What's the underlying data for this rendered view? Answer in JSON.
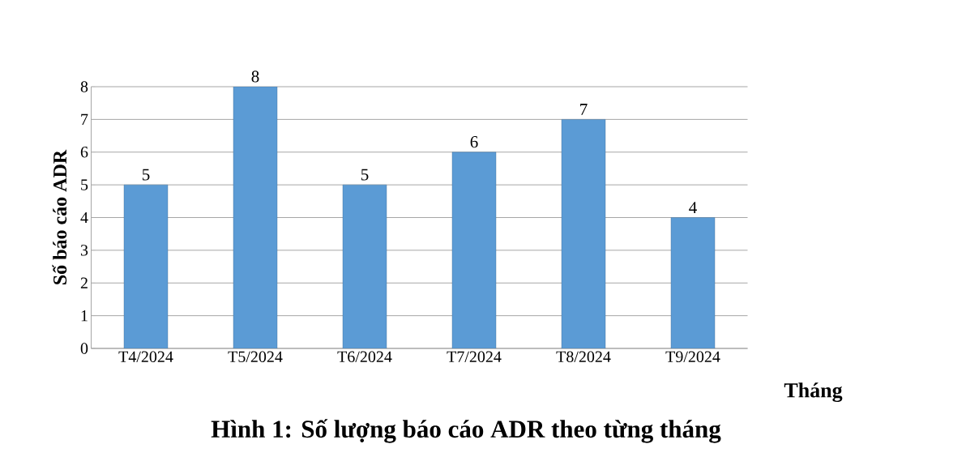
{
  "chart_data": {
    "type": "bar",
    "title": "Hình 1: Số lượng báo cáo ADR theo từng tháng",
    "xlabel": "Tháng",
    "ylabel": "Số báo cáo ADR",
    "categories": [
      "T4/2024",
      "T5/2024",
      "T6/2024",
      "T7/2024",
      "T8/2024",
      "T9/2024"
    ],
    "values": [
      5,
      8,
      5,
      6,
      7,
      4
    ],
    "color": "#5b9bd5",
    "ylim": [
      0,
      8
    ],
    "yticks": [
      0,
      1,
      2,
      3,
      4,
      5,
      6,
      7,
      8
    ],
    "grid": "y",
    "data_labels": true
  }
}
